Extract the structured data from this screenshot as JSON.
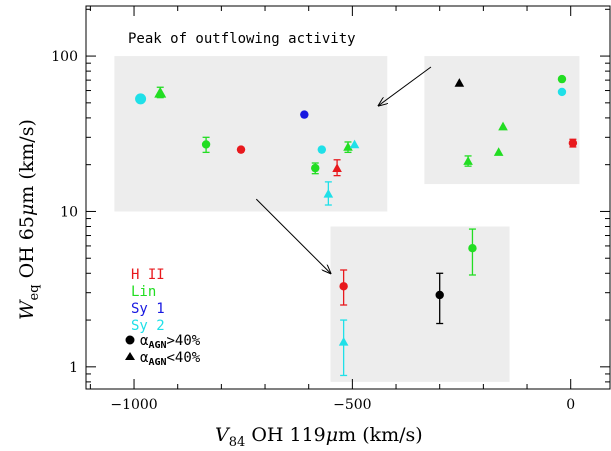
{
  "chart_data": {
    "type": "scatter",
    "title": "",
    "xlabel": {
      "main": "V",
      "sub": "84",
      "rest": " OH 119",
      "mu": "μ",
      "unit": "m (km/s)"
    },
    "ylabel": {
      "main": "W",
      "sub": "eq",
      "rest": " OH 65",
      "mu": "μ",
      "unit": "m (km/s)"
    },
    "xlim": [
      -1110,
      90
    ],
    "ylim_log": [
      0.72,
      210
    ],
    "y_scale": "log",
    "x_ticks": [
      {
        "value": -1000,
        "label": "−1000"
      },
      {
        "value": -500,
        "label": "−500"
      },
      {
        "value": 0,
        "label": "0"
      }
    ],
    "y_ticks": [
      {
        "value": 1,
        "label": "1"
      },
      {
        "value": 10,
        "label": "10"
      },
      {
        "value": 100,
        "label": "100"
      }
    ],
    "annotation": "Peak of outflowing activity",
    "colors": {
      "HII": "#e8191d",
      "Lin": "#22dd22",
      "Sy1": "#1818e0",
      "Sy2": "#1fe0e8",
      "none": "#000000",
      "box": "#ededed"
    },
    "legend": {
      "placement": "lower-left",
      "classes": [
        {
          "label": "H II",
          "color": "#e8191d"
        },
        {
          "label": "Lin",
          "color": "#22dd22"
        },
        {
          "label": "Sy 1",
          "color": "#1818e0"
        },
        {
          "label": "Sy 2",
          "color": "#1fe0e8"
        }
      ],
      "markers": [
        {
          "shape": "circle",
          "alpha": "α",
          "sub": "AGN",
          "rel": ">40%"
        },
        {
          "shape": "triangle",
          "alpha": "α",
          "sub": "AGN",
          "rel": "<40%"
        }
      ]
    },
    "main_points": [
      {
        "x": -985,
        "y": 53,
        "cls": "Sy2",
        "shape": "circle",
        "big": true
      },
      {
        "x": -940,
        "y": 58,
        "cls": "Lin",
        "shape": "triangle",
        "big": true,
        "err": [
          54,
          63
        ]
      },
      {
        "x": -835,
        "y": 27,
        "cls": "Lin",
        "shape": "circle",
        "err": [
          24,
          30
        ]
      },
      {
        "x": -755,
        "y": 25,
        "cls": "HII",
        "shape": "circle"
      },
      {
        "x": -610,
        "y": 42,
        "cls": "Sy1",
        "shape": "circle"
      },
      {
        "x": -585,
        "y": 19,
        "cls": "Lin",
        "shape": "circle",
        "err": [
          17.5,
          20.5
        ]
      },
      {
        "x": -570,
        "y": 25,
        "cls": "Sy2",
        "shape": "circle"
      },
      {
        "x": -555,
        "y": 13,
        "cls": "Sy2",
        "shape": "triangle",
        "err": [
          11,
          15.5
        ]
      },
      {
        "x": -535,
        "y": 19,
        "cls": "HII",
        "shape": "triangle",
        "err": [
          17,
          21.5
        ]
      },
      {
        "x": -510,
        "y": 26,
        "cls": "Lin",
        "shape": "triangle",
        "err": [
          24,
          28
        ]
      },
      {
        "x": -495,
        "y": 27,
        "cls": "Sy2",
        "shape": "triangle"
      }
    ],
    "inset_upper": {
      "box": {
        "x0": -330,
        "x1": 0,
        "y0": 0.28,
        "y1": 0.92
      },
      "points": [
        {
          "x": -255,
          "y": 0.79,
          "cls": "none",
          "shape": "triangle"
        },
        {
          "x": -20,
          "y": 0.82,
          "cls": "Lin",
          "shape": "circle"
        },
        {
          "x": -20,
          "y": 0.72,
          "cls": "Sy2",
          "shape": "circle"
        },
        {
          "x": -155,
          "y": 0.45,
          "cls": "Lin",
          "shape": "triangle"
        },
        {
          "x": -165,
          "y": 0.25,
          "cls": "Lin",
          "shape": "triangle"
        },
        {
          "x": -235,
          "y": 0.18,
          "cls": "Lin",
          "shape": "triangle",
          "err": [
            0.14,
            0.22
          ]
        },
        {
          "x": 5,
          "y": 0.32,
          "cls": "HII",
          "shape": "circle",
          "err": [
            0.29,
            0.35
          ]
        }
      ]
    },
    "inset_lower": {
      "box": {
        "x0": -550,
        "x1": -140,
        "y0": 0.8,
        "y1": 8
      },
      "points": [
        {
          "x": -520,
          "y": 3.3,
          "cls": "HII",
          "shape": "circle",
          "err": [
            2.5,
            4.2
          ]
        },
        {
          "x": -520,
          "y": 1.45,
          "cls": "Sy2",
          "shape": "triangle",
          "err": [
            0.88,
            2.0
          ]
        },
        {
          "x": -300,
          "y": 2.9,
          "cls": "none",
          "shape": "circle",
          "err": [
            1.9,
            4.0
          ]
        },
        {
          "x": -225,
          "y": 5.8,
          "cls": "Lin",
          "shape": "circle",
          "err": [
            3.9,
            7.7
          ]
        }
      ]
    },
    "main_box": {
      "x0": -1045,
      "x1": -420,
      "y0": 10,
      "y1": 100
    },
    "arrows": [
      {
        "from": [
          -320,
          85
        ],
        "to": [
          -440,
          48
        ]
      },
      {
        "from": [
          -720,
          12
        ],
        "to": [
          -550,
          4.0
        ]
      }
    ]
  }
}
